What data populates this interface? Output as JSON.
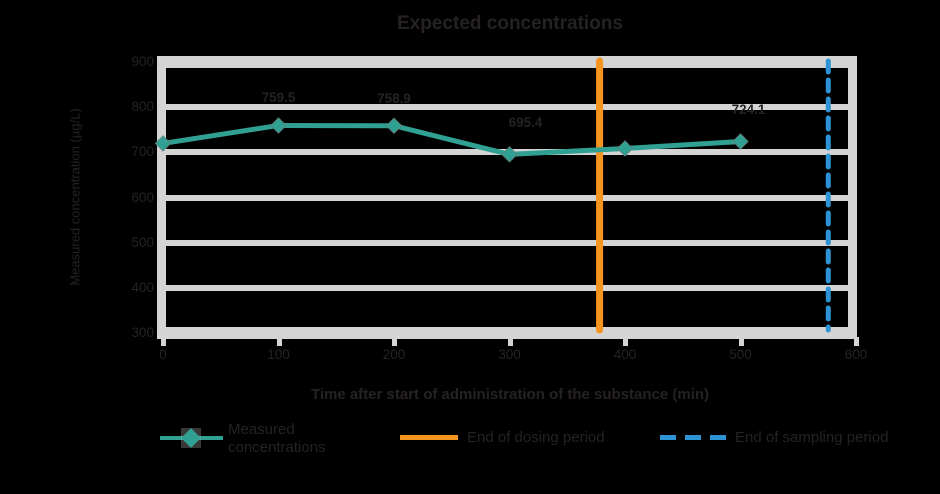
{
  "page": {
    "background_color": "#000000",
    "text_color": "#262223"
  },
  "chart_data": {
    "type": "line",
    "title": "Expected concentrations",
    "ylabel": "Measured concentration (µg/L)",
    "xlabel": "Time after start of administration of the substance (min)",
    "xlim": [
      0,
      600
    ],
    "ylim": [
      300,
      900
    ],
    "x_ticks": [
      "0",
      "100",
      "200",
      "300",
      "400",
      "500",
      "600"
    ],
    "y_ticks": [
      "900",
      "800",
      "700",
      "600",
      "500",
      "400",
      "300"
    ],
    "grid": "horizontal",
    "grid_color": "#D4D4D4",
    "legend_position": "bottom",
    "series": [
      {
        "name": "Measured concentrations",
        "legend_lines": [
          "Measured",
          "concentrations"
        ],
        "color": "#2FA092",
        "marker": "diamond",
        "x": [
          0,
          100,
          200,
          300,
          400,
          500
        ],
        "values": [
          719.7,
          759.5,
          758.9,
          695.4,
          708.6,
          724.1
        ],
        "point_labels": [
          null,
          "759.5",
          "758.9",
          "695.4",
          null,
          "724.1"
        ],
        "label_dx": [
          0,
          0,
          0,
          16,
          0,
          8
        ],
        "label_gap": [
          0,
          20,
          20,
          24,
          0,
          24
        ]
      }
    ],
    "vlines": [
      {
        "name": "End of dosing period",
        "x": 378,
        "color": "#F5941F",
        "style": "solid"
      },
      {
        "name": "End of sampling period",
        "x": 576,
        "color": "#2E93D4",
        "style": "dashed"
      }
    ]
  }
}
